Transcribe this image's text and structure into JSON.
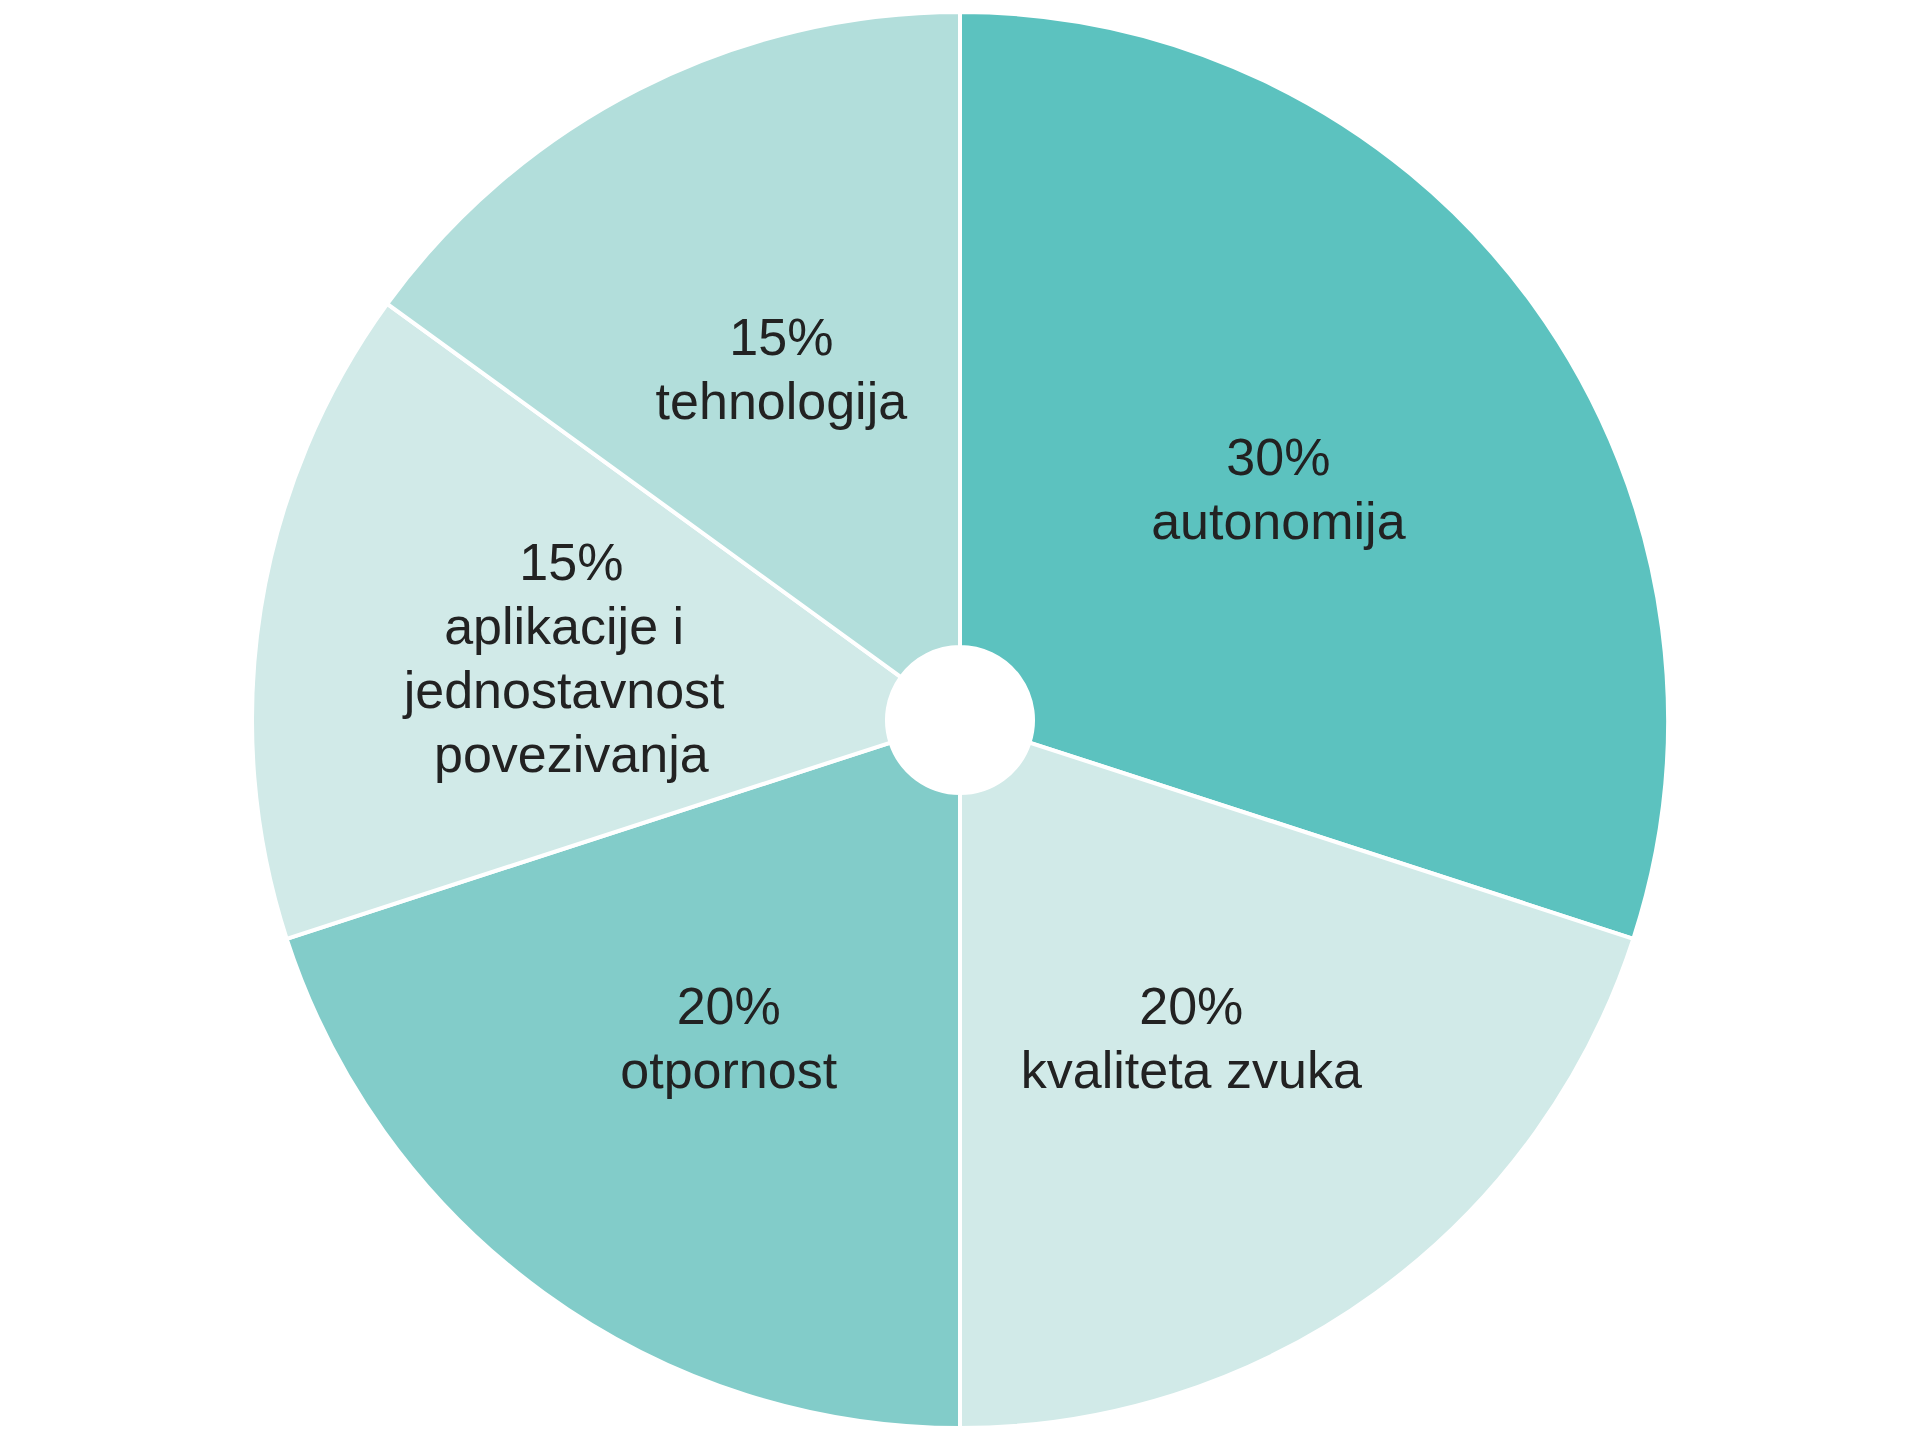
{
  "chart_data": {
    "type": "pie",
    "categories": [
      "autonomija",
      "kvaliteta zvuka",
      "otpornost",
      "aplikacije i jednostavnost povezivanja",
      "tehnologija"
    ],
    "values": [
      30,
      20,
      20,
      15,
      15
    ],
    "value_labels": [
      "30%",
      "20%",
      "20%",
      "15%",
      "15%"
    ],
    "colors": [
      "#5cc2bf",
      "#d1eae8",
      "#82ccc9",
      "#d1eae8",
      "#b2dedb"
    ],
    "legend": false
  }
}
